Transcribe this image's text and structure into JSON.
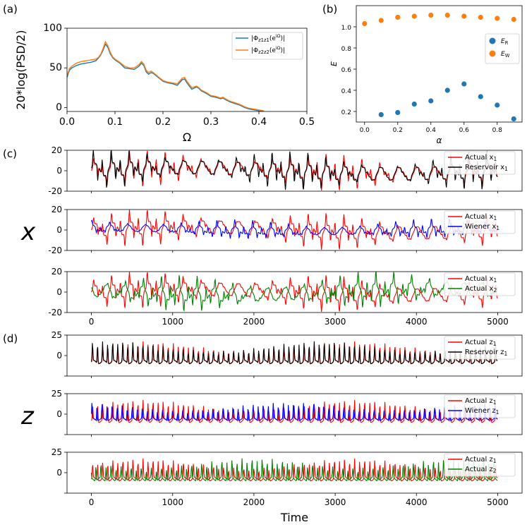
{
  "chart_data": [
    {
      "id": "a",
      "panel_label": "(a)",
      "type": "line",
      "xlabel": "Ω",
      "ylabel": "20*log(PSD/2)",
      "xlim": [
        0,
        0.5
      ],
      "ylim": [
        -5,
        100
      ],
      "xticks": [
        0.0,
        0.1,
        0.2,
        0.3,
        0.4,
        0.5
      ],
      "xtick_labels": [
        "0.0",
        "0.1",
        "0.2",
        "0.3",
        "0.4",
        "0.5"
      ],
      "yticks": [
        0,
        50,
        100
      ],
      "ytick_labels": [
        "0",
        "50",
        "100"
      ],
      "legend_position": "top-right",
      "series": [
        {
          "name": "|Φz1z1(e^iΩ)|",
          "legend_main": "|Φ",
          "legend_sub": "z1z1",
          "legend_tail": "(e",
          "legend_sup": "iΩ",
          "legend_end": ")|",
          "color": "#1f77b4",
          "x": [
            0,
            0.005,
            0.01,
            0.02,
            0.03,
            0.04,
            0.05,
            0.06,
            0.065,
            0.07,
            0.075,
            0.08,
            0.085,
            0.09,
            0.095,
            0.1,
            0.11,
            0.12,
            0.13,
            0.14,
            0.15,
            0.155,
            0.16,
            0.165,
            0.17,
            0.175,
            0.18,
            0.19,
            0.2,
            0.21,
            0.22,
            0.23,
            0.24,
            0.245,
            0.25,
            0.26,
            0.27,
            0.275,
            0.28,
            0.29,
            0.3,
            0.31,
            0.32,
            0.325,
            0.33,
            0.34,
            0.35,
            0.36,
            0.37,
            0.38,
            0.39,
            0.4,
            0.41
          ],
          "values": [
            38,
            47,
            50,
            53,
            55,
            56,
            57,
            59,
            62,
            66,
            72,
            80,
            76,
            68,
            63,
            60,
            56,
            50,
            49,
            48,
            52,
            56,
            53,
            45,
            42,
            44,
            43,
            38,
            33,
            31,
            30,
            28,
            35,
            36,
            31,
            23,
            26,
            24,
            21,
            18,
            14,
            13,
            11,
            12,
            10,
            7,
            5,
            3,
            0,
            -2,
            -3,
            -4,
            -5
          ]
        },
        {
          "name": "|Φz2z2(e^iΩ)|",
          "legend_main": "|Φ",
          "legend_sub": "z2z2",
          "legend_tail": "(e",
          "legend_sup": "iΩ",
          "legend_end": ")|",
          "color": "#ff7f0e",
          "x": [
            0,
            0.005,
            0.01,
            0.02,
            0.03,
            0.04,
            0.05,
            0.06,
            0.065,
            0.07,
            0.075,
            0.08,
            0.085,
            0.09,
            0.095,
            0.1,
            0.11,
            0.12,
            0.13,
            0.14,
            0.15,
            0.155,
            0.16,
            0.165,
            0.17,
            0.175,
            0.18,
            0.19,
            0.2,
            0.21,
            0.22,
            0.23,
            0.24,
            0.245,
            0.25,
            0.26,
            0.27,
            0.275,
            0.28,
            0.29,
            0.3,
            0.31,
            0.32,
            0.325,
            0.33,
            0.34,
            0.35,
            0.36,
            0.37,
            0.38,
            0.39,
            0.4,
            0.41
          ],
          "values": [
            40,
            49,
            52,
            56,
            58,
            59,
            60,
            61,
            63,
            67,
            74,
            83,
            78,
            70,
            64,
            61,
            57,
            52,
            50,
            50,
            54,
            58,
            55,
            47,
            44,
            46,
            44,
            39,
            34,
            32,
            31,
            30,
            37,
            38,
            33,
            25,
            27,
            25,
            22,
            19,
            15,
            14,
            12,
            13,
            11,
            8,
            6,
            4,
            1,
            -1,
            -2,
            -3,
            -4
          ]
        }
      ]
    },
    {
      "id": "b",
      "panel_label": "(b)",
      "type": "scatter",
      "xlabel": "α",
      "ylabel": "E",
      "xlim": [
        -0.05,
        0.95
      ],
      "ylim": [
        0.1,
        1.2
      ],
      "xticks": [
        0.0,
        0.2,
        0.4,
        0.6,
        0.8
      ],
      "xtick_labels": [
        "0.0",
        "0.2",
        "0.4",
        "0.6",
        "0.8"
      ],
      "yticks": [
        0.2,
        0.4,
        0.6,
        0.8,
        1.0
      ],
      "ytick_labels": [
        "0.2",
        "0.4",
        "0.6",
        "0.8",
        "1.0"
      ],
      "legend_position": "right",
      "series": [
        {
          "name": "E_R",
          "legend_main": "E",
          "legend_sub": "R",
          "color": "#1f77b4",
          "x": [
            0.1,
            0.2,
            0.3,
            0.4,
            0.5,
            0.6,
            0.7,
            0.8,
            0.9
          ],
          "values": [
            0.17,
            0.19,
            0.27,
            0.3,
            0.4,
            0.46,
            0.34,
            0.26,
            0.13
          ]
        },
        {
          "name": "E_W",
          "legend_main": "E",
          "legend_sub": "W",
          "color": "#ff7f0e",
          "x": [
            0.0,
            0.1,
            0.2,
            0.3,
            0.4,
            0.5,
            0.6,
            0.7,
            0.8,
            0.9
          ],
          "values": [
            1.03,
            1.06,
            1.09,
            1.1,
            1.11,
            1.11,
            1.1,
            1.09,
            1.08,
            1.07
          ]
        }
      ]
    },
    {
      "id": "c1",
      "panel_label": "(c)",
      "type": "line",
      "xlim": [
        -300,
        5300
      ],
      "ylim": [
        -20,
        20
      ],
      "yticks": [
        -20,
        0,
        20
      ],
      "ytick_labels": [
        "-20",
        "0",
        "20"
      ],
      "signal": "x",
      "series": [
        {
          "name": "Actual x1",
          "legend_main": "Actual x",
          "legend_sub": "1",
          "color": "#ff0000",
          "phase": 0.0,
          "gain": 1.0,
          "shift": 0
        },
        {
          "name": "Reservoir x1",
          "legend_main": "Reservoir x",
          "legend_sub": "1",
          "color": "#000000",
          "phase": 0.25,
          "gain": 1.05,
          "shift": 1
        }
      ]
    },
    {
      "id": "c2",
      "type": "line",
      "row_label": "x",
      "xlim": [
        -300,
        5300
      ],
      "ylim": [
        -20,
        20
      ],
      "yticks": [
        -20,
        0,
        20
      ],
      "ytick_labels": [
        "-20",
        "0",
        "20"
      ],
      "signal": "x",
      "series": [
        {
          "name": "Actual x1",
          "legend_main": "Actual x",
          "legend_sub": "1",
          "color": "#ff0000",
          "phase": 0.0,
          "gain": 1.0,
          "shift": 0
        },
        {
          "name": "Wiener x1",
          "legend_main": "Wiener x",
          "legend_sub": "1",
          "color": "#0000ff",
          "phase": 1.3,
          "gain": 0.55,
          "shift": 2
        }
      ]
    },
    {
      "id": "c3",
      "type": "line",
      "xlim": [
        -300,
        5300
      ],
      "ylim": [
        -20,
        20
      ],
      "yticks": [
        -20,
        0,
        20
      ],
      "ytick_labels": [
        "-20",
        "0",
        "20"
      ],
      "xticks": [
        0,
        1000,
        2000,
        3000,
        4000,
        5000
      ],
      "xtick_labels": [
        "0",
        "1000",
        "2000",
        "3000",
        "4000",
        "5000"
      ],
      "signal": "x",
      "series": [
        {
          "name": "Actual x1",
          "legend_main": "Actual x",
          "legend_sub": "1",
          "color": "#ff0000",
          "phase": 0.0,
          "gain": 1.0,
          "shift": 0
        },
        {
          "name": "Actual x2",
          "legend_main": "Actual x",
          "legend_sub": "2",
          "color": "#008000",
          "phase": 2.6,
          "gain": 1.0,
          "shift": 3
        }
      ]
    },
    {
      "id": "d1",
      "panel_label": "(d)",
      "type": "line",
      "xlim": [
        -300,
        5300
      ],
      "ylim": [
        -25,
        25
      ],
      "yticks": [
        -25,
        0,
        25
      ],
      "ytick_labels": [
        "",
        "0",
        "25"
      ],
      "signal": "z",
      "series": [
        {
          "name": "Actual z1",
          "legend_main": "Actual z",
          "legend_sub": "1",
          "color": "#ff0000",
          "phase": 0.0,
          "gain": 1.0,
          "shift": 0
        },
        {
          "name": "Reservoir z1",
          "legend_main": "Reservoir z",
          "legend_sub": "1",
          "color": "#000000",
          "phase": 0.2,
          "gain": 1.0,
          "shift": 1
        }
      ]
    },
    {
      "id": "d2",
      "type": "line",
      "row_label": "z",
      "xlim": [
        -300,
        5300
      ],
      "ylim": [
        -25,
        25
      ],
      "yticks": [
        -25,
        0,
        25
      ],
      "ytick_labels": [
        "",
        "0",
        "25"
      ],
      "signal": "z",
      "series": [
        {
          "name": "Actual z1",
          "legend_main": "Actual z",
          "legend_sub": "1",
          "color": "#ff0000",
          "phase": 0.0,
          "gain": 1.0,
          "shift": 0
        },
        {
          "name": "Wiener z1",
          "legend_main": "Wiener z",
          "legend_sub": "1",
          "color": "#0000ff",
          "phase": 0.9,
          "gain": 0.8,
          "shift": 2
        }
      ]
    },
    {
      "id": "d3",
      "type": "line",
      "xlim": [
        -300,
        5300
      ],
      "ylim": [
        -25,
        25
      ],
      "yticks": [
        -25,
        0,
        25
      ],
      "ytick_labels": [
        "",
        "0",
        "25"
      ],
      "xticks": [
        0,
        1000,
        2000,
        3000,
        4000,
        5000
      ],
      "xtick_labels": [
        "0",
        "1000",
        "2000",
        "3000",
        "4000",
        "5000"
      ],
      "xlabel": "Time",
      "signal": "z",
      "series": [
        {
          "name": "Actual z1",
          "legend_main": "Actual z",
          "legend_sub": "1",
          "color": "#ff0000",
          "phase": 0.0,
          "gain": 1.0,
          "shift": 0
        },
        {
          "name": "Actual z2",
          "legend_main": "Actual z",
          "legend_sub": "2",
          "color": "#008000",
          "phase": 2.2,
          "gain": 1.0,
          "shift": 3
        }
      ]
    }
  ]
}
